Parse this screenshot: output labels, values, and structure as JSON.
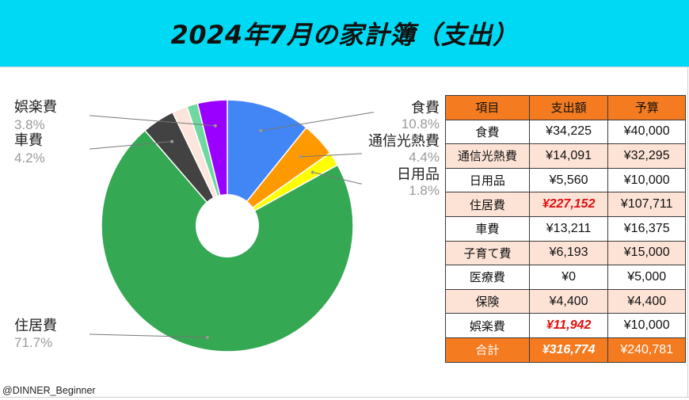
{
  "title": "2024年7月の家計簿（支出）",
  "credit": "@DINNER_Beginner",
  "chart_data": {
    "type": "pie",
    "title": "2024年7月の家計簿（支出）",
    "hole": true,
    "slices": [
      {
        "name": "食費",
        "percent": 10.8,
        "label_pct": "10.8%",
        "color": "#4285f4"
      },
      {
        "name": "通信光熱費",
        "percent": 4.4,
        "label_pct": "4.4%",
        "color": "#ff9900"
      },
      {
        "name": "日用品",
        "percent": 1.8,
        "label_pct": "1.8%",
        "color": "#ffff00"
      },
      {
        "name": "住居費",
        "percent": 71.7,
        "label_pct": "71.7%",
        "color": "#34a853"
      },
      {
        "name": "車費",
        "percent": 4.2,
        "label_pct": "4.2%",
        "color": "#424242"
      },
      {
        "name": "子育て費",
        "percent": 1.95,
        "label_pct": "",
        "color": "#fce5dc"
      },
      {
        "name": "保険",
        "percent": 1.4,
        "label_pct": "",
        "color": "#6fd8a0"
      },
      {
        "name": "娯楽費",
        "percent": 3.8,
        "label_pct": "3.8%",
        "color": "#9900ff"
      }
    ]
  },
  "table": {
    "headers": [
      "項目",
      "支出額",
      "予算"
    ],
    "rows": [
      {
        "item": "食費",
        "spent": "¥34,225",
        "budget": "¥40,000",
        "over": false
      },
      {
        "item": "通信光熱費",
        "spent": "¥14,091",
        "budget": "¥32,295",
        "over": false
      },
      {
        "item": "日用品",
        "spent": "¥5,560",
        "budget": "¥10,000",
        "over": false
      },
      {
        "item": "住居費",
        "spent": "¥227,152",
        "budget": "¥107,711",
        "over": true
      },
      {
        "item": "車費",
        "spent": "¥13,211",
        "budget": "¥16,375",
        "over": false
      },
      {
        "item": "子育て費",
        "spent": "¥6,193",
        "budget": "¥15,000",
        "over": false
      },
      {
        "item": "医療費",
        "spent": "¥0",
        "budget": "¥5,000",
        "over": false
      },
      {
        "item": "保険",
        "spent": "¥4,400",
        "budget": "¥4,400",
        "over": false
      },
      {
        "item": "娯楽費",
        "spent": "¥11,942",
        "budget": "¥10,000",
        "over": true
      }
    ],
    "total": {
      "item": "合計",
      "spent": "¥316,774",
      "budget": "¥240,781"
    }
  }
}
